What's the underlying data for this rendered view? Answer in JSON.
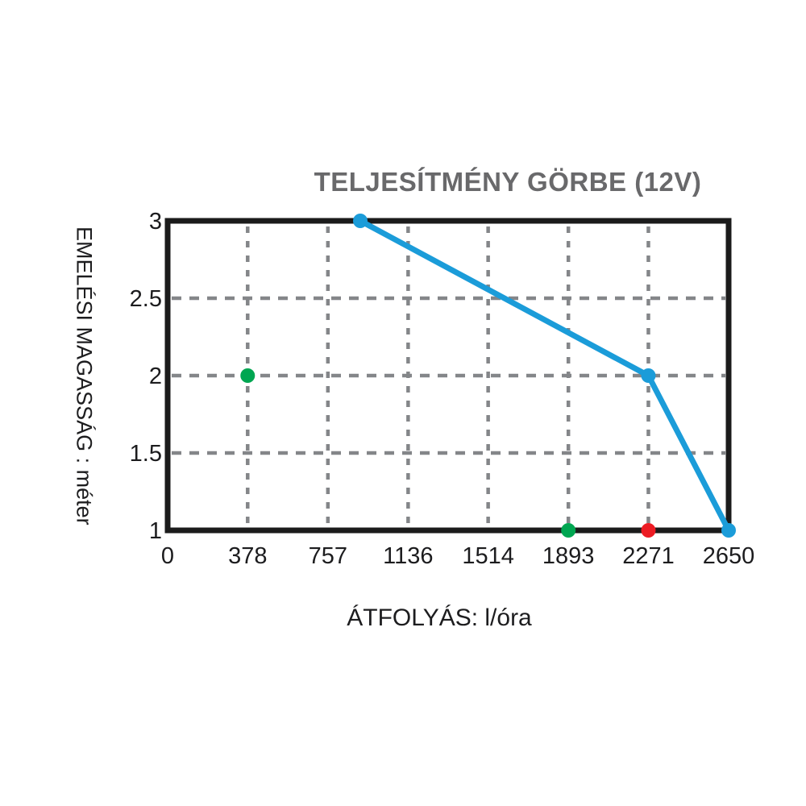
{
  "chart_data": {
    "type": "line",
    "title": "TELJESÍTMÉNY GÖRBE (12V)",
    "xlabel": "ÁTFOLYÁS: l/óra",
    "ylabel": "EMELÉSI MAGASSÁG : méter",
    "x_ticks": [
      0,
      378,
      757,
      1136,
      1514,
      1893,
      2271,
      2650
    ],
    "y_ticks": [
      3,
      2.5,
      2,
      1.5,
      1
    ],
    "xlim": [
      0,
      2650
    ],
    "ylim": [
      1,
      3
    ],
    "grid": "dashed-gray-both-axes",
    "legend": "none",
    "series": [
      {
        "name": "performance-curve-12v",
        "color": "#1B9CD9",
        "marker": "circle",
        "points": [
          [
            910,
            3
          ],
          [
            2271,
            2
          ],
          [
            2650,
            1
          ]
        ]
      }
    ],
    "isolated_points": [
      {
        "name": "green-marker-1",
        "color": "#00A651",
        "x": 378,
        "y": 2
      },
      {
        "name": "green-marker-2",
        "color": "#00A651",
        "x": 1893,
        "y": 1
      },
      {
        "name": "red-marker",
        "color": "#EC1C24",
        "x": 2271,
        "y": 1
      }
    ],
    "colors": {
      "line": "#1B9CD9",
      "green_dot": "#00A651",
      "red_dot": "#EC1C24",
      "border": "#1B1B1B",
      "grid": "#848689",
      "title": "#69696B",
      "tick_text": "#1C1C1E"
    }
  }
}
